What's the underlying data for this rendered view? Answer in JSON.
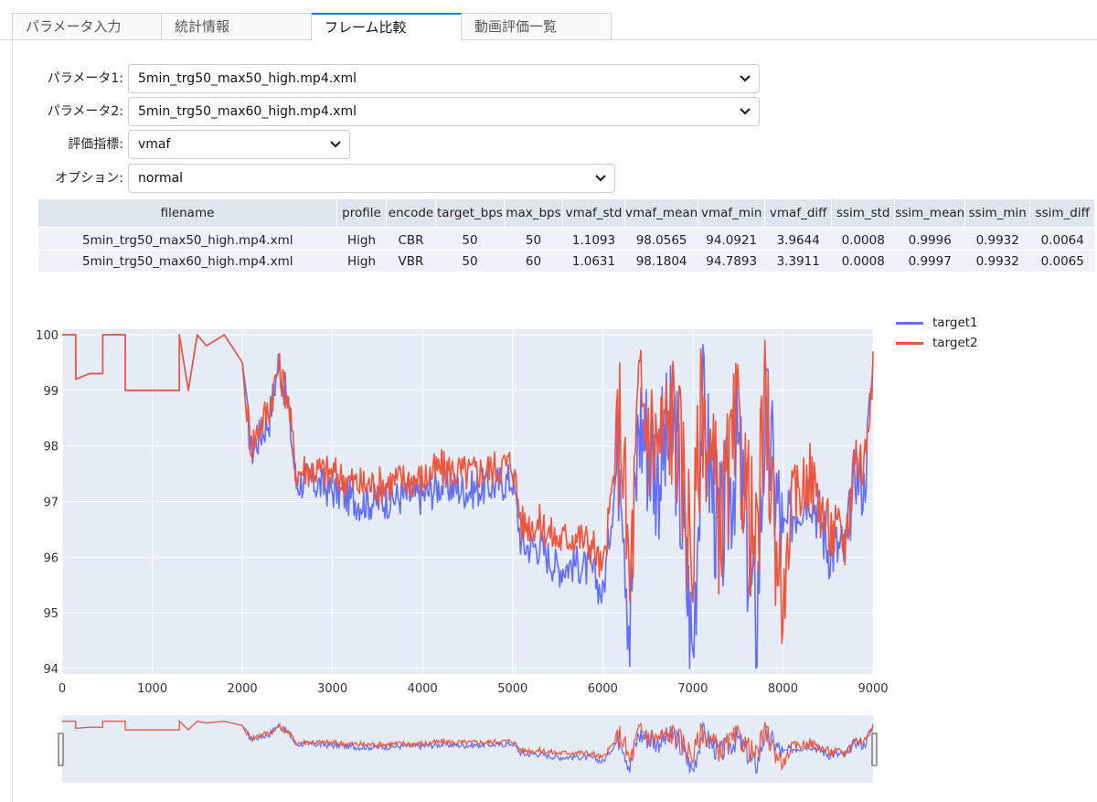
{
  "tabs": [
    {
      "label": "パラメータ入力",
      "active": false
    },
    {
      "label": "統計情報",
      "active": false
    },
    {
      "label": "フレーム比較",
      "active": true
    },
    {
      "label": "動画評価一覧",
      "active": false
    }
  ],
  "form": {
    "param1": {
      "label": "パラメータ1:",
      "value": "5min_trg50_max50_high.mp4.xml"
    },
    "param2": {
      "label": "パラメータ2:",
      "value": "5min_trg50_max60_high.mp4.xml"
    },
    "metric": {
      "label": "評価指標:",
      "value": "vmaf"
    },
    "option": {
      "label": "オプション:",
      "value": "normal"
    }
  },
  "table": {
    "headers": [
      "filename",
      "profile",
      "encode",
      "target_bps",
      "max_bps",
      "vmaf_std",
      "vmaf_mean",
      "vmaf_min",
      "vmaf_diff",
      "ssim_std",
      "ssim_mean",
      "ssim_min",
      "ssim_diff"
    ],
    "rows": [
      [
        "5min_trg50_max50_high.mp4.xml",
        "High",
        "CBR",
        "50",
        "50",
        "1.1093",
        "98.0565",
        "94.0921",
        "3.9644",
        "0.0008",
        "0.9996",
        "0.9932",
        "0.0064"
      ],
      [
        "5min_trg50_max60_high.mp4.xml",
        "High",
        "VBR",
        "50",
        "60",
        "1.0631",
        "98.1804",
        "94.7893",
        "3.3911",
        "0.0008",
        "0.9997",
        "0.9932",
        "0.0065"
      ]
    ]
  },
  "chart_data": {
    "type": "line",
    "title": "",
    "xlabel": "",
    "ylabel": "",
    "xlim": [
      0,
      9000
    ],
    "ylim": [
      93.9,
      100.1
    ],
    "x_ticks": [
      0,
      1000,
      2000,
      3000,
      4000,
      5000,
      6000,
      7000,
      8000,
      9000
    ],
    "y_ticks": [
      94,
      95,
      96,
      97,
      98,
      99,
      100
    ],
    "legend": [
      {
        "name": "target1",
        "color": "#636efa"
      },
      {
        "name": "target2",
        "color": "#ef553b"
      }
    ],
    "series": [
      {
        "name": "target1",
        "color": "#636efa",
        "x": [
          0,
          150,
          151,
          300,
          450,
          451,
          700,
          701,
          1300,
          1301,
          1400,
          1500,
          1600,
          1800,
          2000,
          2050,
          2100,
          2200,
          2300,
          2400,
          2500,
          2600,
          2700,
          3000,
          3300,
          3500,
          3800,
          4000,
          4200,
          4500,
          4800,
          5000,
          5100,
          5300,
          5500,
          5700,
          5900,
          6000,
          6200,
          6300,
          6400,
          6600,
          6800,
          7000,
          7100,
          7300,
          7500,
          7700,
          7800,
          8000,
          8100,
          8300,
          8500,
          8700,
          8800,
          8900,
          9000
        ],
        "y": [
          100,
          100,
          99.2,
          99.3,
          99.3,
          100,
          100,
          99.0,
          99.0,
          100,
          99.0,
          100,
          99.8,
          100,
          99.5,
          98.6,
          97.9,
          98.2,
          98.5,
          99.5,
          98.8,
          97.3,
          97.4,
          97.2,
          97.0,
          97.0,
          97.1,
          97.1,
          97.3,
          97.2,
          97.3,
          97.4,
          96.2,
          96.2,
          95.8,
          95.9,
          95.7,
          95.3,
          98.3,
          94.7,
          98.5,
          97.6,
          98.3,
          94.2,
          98.7,
          96.2,
          98.0,
          94.6,
          98.5,
          96.3,
          96.8,
          97.3,
          96.2,
          96.1,
          97.6,
          97.2,
          99.5
        ]
      },
      {
        "name": "target2",
        "color": "#ef553b",
        "x": [
          0,
          150,
          151,
          300,
          450,
          451,
          700,
          701,
          1300,
          1301,
          1400,
          1500,
          1600,
          1800,
          2000,
          2050,
          2100,
          2200,
          2300,
          2400,
          2500,
          2600,
          2700,
          3000,
          3300,
          3500,
          3800,
          4000,
          4200,
          4500,
          4800,
          5000,
          5100,
          5300,
          5500,
          5700,
          5900,
          6000,
          6200,
          6300,
          6400,
          6600,
          6800,
          7000,
          7100,
          7300,
          7500,
          7700,
          7800,
          8000,
          8100,
          8300,
          8500,
          8700,
          8800,
          8900,
          9000
        ],
        "y": [
          100,
          100,
          99.2,
          99.3,
          99.3,
          100,
          100,
          99.0,
          99.0,
          100,
          99.0,
          100,
          99.8,
          100,
          99.5,
          98.7,
          98.0,
          98.4,
          98.7,
          99.4,
          98.9,
          97.5,
          97.6,
          97.5,
          97.3,
          97.3,
          97.4,
          97.4,
          97.6,
          97.5,
          97.6,
          97.7,
          96.6,
          96.6,
          96.3,
          96.4,
          96.2,
          95.7,
          98.6,
          95.3,
          98.8,
          98.0,
          98.6,
          96.0,
          98.9,
          96.6,
          98.3,
          95.9,
          98.7,
          95.0,
          97.0,
          97.5,
          96.5,
          96.3,
          97.9,
          97.6,
          99.7
        ]
      }
    ]
  }
}
